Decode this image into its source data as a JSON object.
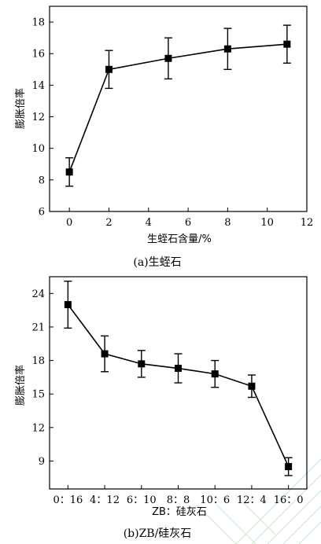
{
  "chart_data": [
    {
      "type": "line",
      "caption": "(a)生蛭石",
      "xlabel": "生蛭石含量/%",
      "ylabel": "膨胀倍率",
      "xlim": [
        -1,
        12
      ],
      "ylim": [
        6,
        19
      ],
      "xticks": [
        0,
        2,
        4,
        6,
        8,
        10,
        12
      ],
      "xtick_labels": [
        "0",
        "2",
        "4",
        "6",
        "8",
        "10",
        "12"
      ],
      "yticks": [
        6,
        8,
        10,
        12,
        14,
        16,
        18
      ],
      "ytick_labels": [
        "6",
        "8",
        "10",
        "12",
        "14",
        "16",
        "18"
      ],
      "x": [
        0,
        2,
        5,
        8,
        11
      ],
      "series": [
        {
          "values": [
            8.5,
            15.0,
            15.7,
            16.3,
            16.6
          ],
          "errors": [
            0.9,
            1.2,
            1.3,
            1.3,
            1.2
          ]
        }
      ],
      "grid": false
    },
    {
      "type": "line",
      "caption": "(b)ZB/硅灰石",
      "xlabel": "ZB：硅灰石",
      "ylabel": "膨胀倍率",
      "ylim": [
        6.5,
        25.5
      ],
      "categories": [
        "0：16",
        "4：12",
        "6：10",
        "8：8",
        "10：6",
        "12：4",
        "16：0"
      ],
      "yticks": [
        9,
        12,
        15,
        18,
        21,
        24
      ],
      "ytick_labels": [
        "9",
        "12",
        "15",
        "18",
        "21",
        "24"
      ],
      "series": [
        {
          "values": [
            23.0,
            18.6,
            17.7,
            17.3,
            16.8,
            15.7,
            8.5
          ],
          "errors": [
            2.1,
            1.6,
            1.2,
            1.3,
            1.2,
            1.0,
            0.8
          ]
        }
      ],
      "grid": false
    }
  ],
  "watermark": {
    "color": "#cfeccf"
  }
}
